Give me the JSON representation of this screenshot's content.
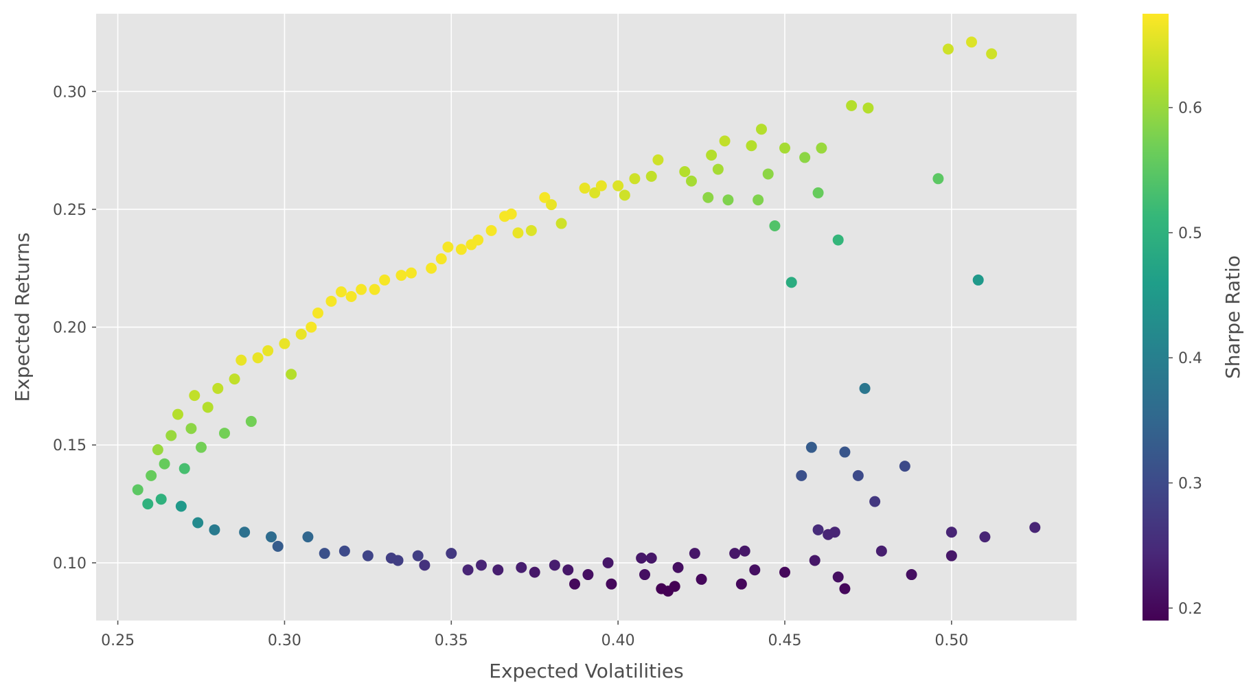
{
  "chart_data": {
    "type": "scatter",
    "title": "",
    "xlabel": "Expected Volatilities",
    "ylabel": "Expected Returns",
    "xlim": [
      0.2435,
      0.5375
    ],
    "ylim": [
      0.0755,
      0.333
    ],
    "xticks": [
      0.25,
      0.3,
      0.35,
      0.4,
      0.45,
      0.5
    ],
    "xtick_labels": [
      "0.25",
      "0.30",
      "0.35",
      "0.40",
      "0.45",
      "0.50"
    ],
    "yticks": [
      0.1,
      0.15,
      0.2,
      0.25,
      0.3
    ],
    "ytick_labels": [
      "0.10",
      "0.15",
      "0.20",
      "0.25",
      "0.30"
    ],
    "grid": true,
    "background": "#e5e5e5",
    "colorbar": {
      "label": "Sharpe Ratio",
      "colormap": "viridis",
      "range": [
        0.19,
        0.675
      ],
      "ticks": [
        0.2,
        0.3,
        0.4,
        0.5,
        0.6
      ],
      "tick_labels": [
        "0.2",
        "0.3",
        "0.4",
        "0.5",
        "0.6"
      ]
    },
    "colormap_stops": [
      "#440154",
      "#482878",
      "#3e4989",
      "#31688e",
      "#26828e",
      "#1f9e89",
      "#35b779",
      "#6ece58",
      "#b5de2b",
      "#fde725"
    ],
    "series": [
      {
        "points": [
          [
            0.256,
            0.131,
            0.55
          ],
          [
            0.259,
            0.125,
            0.5
          ],
          [
            0.26,
            0.137,
            0.56
          ],
          [
            0.262,
            0.148,
            0.6
          ],
          [
            0.263,
            0.127,
            0.5
          ],
          [
            0.264,
            0.142,
            0.56
          ],
          [
            0.266,
            0.154,
            0.6
          ],
          [
            0.268,
            0.163,
            0.62
          ],
          [
            0.269,
            0.124,
            0.45
          ],
          [
            0.27,
            0.14,
            0.53
          ],
          [
            0.272,
            0.157,
            0.59
          ],
          [
            0.273,
            0.171,
            0.63
          ],
          [
            0.274,
            0.117,
            0.42
          ],
          [
            0.275,
            0.149,
            0.57
          ],
          [
            0.277,
            0.166,
            0.62
          ],
          [
            0.279,
            0.114,
            0.39
          ],
          [
            0.28,
            0.174,
            0.63
          ],
          [
            0.282,
            0.155,
            0.57
          ],
          [
            0.285,
            0.178,
            0.63
          ],
          [
            0.287,
            0.186,
            0.66
          ],
          [
            0.288,
            0.113,
            0.37
          ],
          [
            0.29,
            0.16,
            0.57
          ],
          [
            0.292,
            0.187,
            0.66
          ],
          [
            0.295,
            0.19,
            0.66
          ],
          [
            0.296,
            0.111,
            0.36
          ],
          [
            0.298,
            0.107,
            0.33
          ],
          [
            0.3,
            0.193,
            0.66
          ],
          [
            0.302,
            0.18,
            0.62
          ],
          [
            0.305,
            0.197,
            0.66
          ],
          [
            0.307,
            0.111,
            0.35
          ],
          [
            0.308,
            0.2,
            0.67
          ],
          [
            0.31,
            0.206,
            0.67
          ],
          [
            0.312,
            0.104,
            0.31
          ],
          [
            0.314,
            0.211,
            0.67
          ],
          [
            0.317,
            0.215,
            0.67
          ],
          [
            0.318,
            0.105,
            0.3
          ],
          [
            0.32,
            0.213,
            0.67
          ],
          [
            0.323,
            0.216,
            0.67
          ],
          [
            0.325,
            0.103,
            0.29
          ],
          [
            0.327,
            0.216,
            0.67
          ],
          [
            0.33,
            0.22,
            0.67
          ],
          [
            0.332,
            0.102,
            0.28
          ],
          [
            0.334,
            0.101,
            0.28
          ],
          [
            0.335,
            0.222,
            0.67
          ],
          [
            0.338,
            0.223,
            0.67
          ],
          [
            0.34,
            0.103,
            0.28
          ],
          [
            0.342,
            0.099,
            0.26
          ],
          [
            0.344,
            0.225,
            0.67
          ],
          [
            0.347,
            0.229,
            0.67
          ],
          [
            0.349,
            0.234,
            0.67
          ],
          [
            0.35,
            0.104,
            0.27
          ],
          [
            0.353,
            0.233,
            0.67
          ],
          [
            0.355,
            0.097,
            0.24
          ],
          [
            0.356,
            0.235,
            0.67
          ],
          [
            0.358,
            0.237,
            0.67
          ],
          [
            0.359,
            0.099,
            0.24
          ],
          [
            0.362,
            0.241,
            0.67
          ],
          [
            0.364,
            0.097,
            0.23
          ],
          [
            0.366,
            0.247,
            0.67
          ],
          [
            0.368,
            0.248,
            0.67
          ],
          [
            0.37,
            0.24,
            0.66
          ],
          [
            0.371,
            0.098,
            0.23
          ],
          [
            0.374,
            0.241,
            0.65
          ],
          [
            0.375,
            0.096,
            0.22
          ],
          [
            0.378,
            0.255,
            0.67
          ],
          [
            0.38,
            0.252,
            0.66
          ],
          [
            0.381,
            0.099,
            0.23
          ],
          [
            0.383,
            0.244,
            0.64
          ],
          [
            0.385,
            0.097,
            0.22
          ],
          [
            0.387,
            0.091,
            0.2
          ],
          [
            0.39,
            0.259,
            0.66
          ],
          [
            0.391,
            0.095,
            0.21
          ],
          [
            0.393,
            0.257,
            0.65
          ],
          [
            0.395,
            0.26,
            0.66
          ],
          [
            0.397,
            0.1,
            0.22
          ],
          [
            0.398,
            0.091,
            0.2
          ],
          [
            0.4,
            0.26,
            0.65
          ],
          [
            0.402,
            0.256,
            0.64
          ],
          [
            0.405,
            0.263,
            0.64
          ],
          [
            0.407,
            0.102,
            0.22
          ],
          [
            0.408,
            0.095,
            0.21
          ],
          [
            0.41,
            0.264,
            0.63
          ],
          [
            0.41,
            0.102,
            0.22
          ],
          [
            0.412,
            0.271,
            0.64
          ],
          [
            0.413,
            0.089,
            0.19
          ],
          [
            0.415,
            0.088,
            0.19
          ],
          [
            0.417,
            0.09,
            0.19
          ],
          [
            0.418,
            0.098,
            0.21
          ],
          [
            0.42,
            0.266,
            0.62
          ],
          [
            0.422,
            0.262,
            0.61
          ],
          [
            0.423,
            0.104,
            0.22
          ],
          [
            0.425,
            0.093,
            0.2
          ],
          [
            0.427,
            0.255,
            0.59
          ],
          [
            0.428,
            0.273,
            0.62
          ],
          [
            0.43,
            0.267,
            0.61
          ],
          [
            0.432,
            0.279,
            0.63
          ],
          [
            0.433,
            0.254,
            0.58
          ],
          [
            0.435,
            0.104,
            0.22
          ],
          [
            0.437,
            0.091,
            0.2
          ],
          [
            0.438,
            0.105,
            0.22
          ],
          [
            0.44,
            0.277,
            0.62
          ],
          [
            0.441,
            0.097,
            0.21
          ],
          [
            0.442,
            0.254,
            0.58
          ],
          [
            0.443,
            0.284,
            0.62
          ],
          [
            0.445,
            0.265,
            0.59
          ],
          [
            0.447,
            0.243,
            0.54
          ],
          [
            0.45,
            0.276,
            0.61
          ],
          [
            0.45,
            0.096,
            0.2
          ],
          [
            0.452,
            0.219,
            0.49
          ],
          [
            0.455,
            0.137,
            0.31
          ],
          [
            0.456,
            0.272,
            0.59
          ],
          [
            0.458,
            0.149,
            0.33
          ],
          [
            0.459,
            0.101,
            0.22
          ],
          [
            0.46,
            0.257,
            0.56
          ],
          [
            0.46,
            0.114,
            0.25
          ],
          [
            0.461,
            0.276,
            0.6
          ],
          [
            0.463,
            0.112,
            0.24
          ],
          [
            0.465,
            0.113,
            0.24
          ],
          [
            0.466,
            0.094,
            0.21
          ],
          [
            0.466,
            0.237,
            0.51
          ],
          [
            0.468,
            0.089,
            0.2
          ],
          [
            0.468,
            0.147,
            0.32
          ],
          [
            0.47,
            0.294,
            0.62
          ],
          [
            0.472,
            0.137,
            0.3
          ],
          [
            0.474,
            0.174,
            0.38
          ],
          [
            0.475,
            0.293,
            0.62
          ],
          [
            0.477,
            0.126,
            0.27
          ],
          [
            0.479,
            0.105,
            0.23
          ],
          [
            0.486,
            0.141,
            0.3
          ],
          [
            0.488,
            0.095,
            0.21
          ],
          [
            0.496,
            0.263,
            0.55
          ],
          [
            0.499,
            0.318,
            0.64
          ],
          [
            0.5,
            0.103,
            0.22
          ],
          [
            0.5,
            0.113,
            0.24
          ],
          [
            0.506,
            0.321,
            0.65
          ],
          [
            0.508,
            0.22,
            0.45
          ],
          [
            0.51,
            0.111,
            0.24
          ],
          [
            0.512,
            0.316,
            0.64
          ],
          [
            0.525,
            0.115,
            0.24
          ]
        ]
      }
    ]
  }
}
